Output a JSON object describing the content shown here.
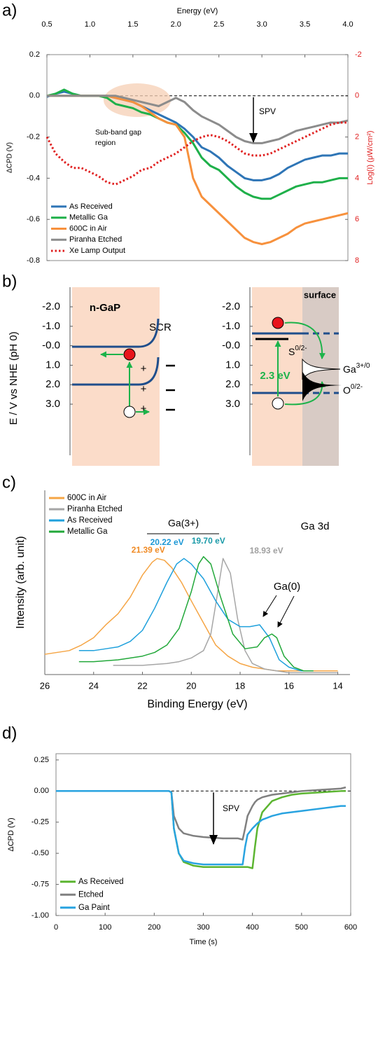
{
  "chart_data": [
    {
      "type": "line",
      "panel_label": "a)",
      "x_label": "Energy (eV)",
      "y_label": "ΔCPD (V)",
      "y2_label": "Log(I) (μW/cm²)",
      "y2_color": "#e02020",
      "xlim": [
        0.5,
        4.0
      ],
      "xticks": [
        0.5,
        {
          "value": 1,
          "label": "1.0"
        },
        1.5,
        {
          "value": 2,
          "label": "2.0"
        },
        2.5,
        {
          "value": 3,
          "label": "3.0"
        },
        3.5,
        {
          "value": 4,
          "label": "4.0"
        }
      ],
      "ylim": [
        -0.8,
        0.2
      ],
      "yticks": [
        0.2,
        {
          "value": 0,
          "label": "0.0"
        },
        -0.2,
        -0.4,
        -0.6,
        -0.8
      ],
      "y2lim": [
        8,
        -2
      ],
      "y2ticks": [
        -2,
        0,
        2,
        4,
        6,
        8
      ],
      "hline": {
        "y": 0
      },
      "legend": "lower left",
      "annotations": [
        "SPV",
        "Sub-band gap",
        "region"
      ],
      "x": [
        0.5,
        0.6,
        0.7,
        0.8,
        0.9,
        1.0,
        1.1,
        1.2,
        1.3,
        1.4,
        1.5,
        1.6,
        1.7,
        1.8,
        1.9,
        2.0,
        2.1,
        2.2,
        2.3,
        2.4,
        2.5,
        2.6,
        2.7,
        2.8,
        2.9,
        3.0,
        3.1,
        3.2,
        3.3,
        3.4,
        3.5,
        3.6,
        3.7,
        3.8,
        3.9,
        4.0
      ],
      "series": [
        {
          "name": "As Received",
          "color": "#2e75b6",
          "values": [
            -0.005,
            0.01,
            0.02,
            0.01,
            0,
            0,
            0,
            0,
            -0.01,
            -0.02,
            -0.03,
            -0.05,
            -0.07,
            -0.09,
            -0.11,
            -0.13,
            -0.16,
            -0.2,
            -0.25,
            -0.27,
            -0.3,
            -0.34,
            -0.37,
            -0.4,
            -0.41,
            -0.41,
            -0.4,
            -0.38,
            -0.35,
            -0.33,
            -0.31,
            -0.3,
            -0.29,
            -0.29,
            -0.28,
            -0.28
          ]
        },
        {
          "name": "Metallic Ga",
          "color": "#1fb04a",
          "values": [
            0,
            0.01,
            0.03,
            0.01,
            0,
            0,
            0,
            -0.01,
            -0.04,
            -0.05,
            -0.06,
            -0.08,
            -0.09,
            -0.11,
            -0.13,
            -0.14,
            -0.18,
            -0.23,
            -0.3,
            -0.34,
            -0.36,
            -0.4,
            -0.44,
            -0.47,
            -0.49,
            -0.5,
            -0.5,
            -0.48,
            -0.46,
            -0.44,
            -0.43,
            -0.42,
            -0.42,
            -0.41,
            -0.4,
            -0.4
          ]
        },
        {
          "name": "600C in Air",
          "color": "#f7913d",
          "values": [
            0,
            0,
            0,
            0,
            0,
            0,
            0,
            0,
            -0.01,
            -0.02,
            -0.03,
            -0.05,
            -0.08,
            -0.11,
            -0.13,
            -0.14,
            -0.2,
            -0.4,
            -0.49,
            -0.53,
            -0.57,
            -0.61,
            -0.65,
            -0.69,
            -0.71,
            -0.72,
            -0.71,
            -0.69,
            -0.67,
            -0.64,
            -0.62,
            -0.61,
            -0.6,
            -0.59,
            -0.58,
            -0.57
          ]
        },
        {
          "name": "Piranha Etched",
          "color": "#8c8c8c",
          "values": [
            0,
            0,
            0,
            0,
            0,
            0,
            0,
            0,
            0,
            -0.01,
            -0.02,
            -0.03,
            -0.04,
            -0.05,
            -0.03,
            -0.01,
            -0.03,
            -0.07,
            -0.1,
            -0.12,
            -0.14,
            -0.17,
            -0.2,
            -0.22,
            -0.23,
            -0.23,
            -0.22,
            -0.21,
            -0.19,
            -0.17,
            -0.16,
            -0.15,
            -0.14,
            -0.13,
            -0.13,
            -0.12
          ]
        },
        {
          "name": "Xe Lamp Output",
          "color": "#e02020",
          "style": "dotted",
          "axis": "y2",
          "values": [
            2,
            2.8,
            3.2,
            3.5,
            3.5,
            3.7,
            3.9,
            4.2,
            4.3,
            4.1,
            3.9,
            3.6,
            3.5,
            3.2,
            3.0,
            2.8,
            2.5,
            2.2,
            2.0,
            1.9,
            2.0,
            2.2,
            2.5,
            2.8,
            2.9,
            2.9,
            2.8,
            2.6,
            2.4,
            2.2,
            2.0,
            1.8,
            1.6,
            1.4,
            1.3,
            1.3
          ]
        }
      ]
    },
    {
      "type": "line",
      "panel_label": "c)",
      "x_label": "Binding Energy (eV)",
      "y_label": "Intensity (arb. unit)",
      "xlim": [
        26,
        13.5
      ],
      "xticks": [
        26,
        24,
        22,
        20,
        18,
        16,
        14
      ],
      "ylim": [
        0,
        1
      ],
      "legend": "upper left",
      "annotations": [
        "Ga(3+)",
        "Ga 3d",
        "Ga(0)"
      ],
      "peak_labels": [
        {
          "value": 21.39,
          "label": "21.39 eV",
          "color": "#f08a24"
        },
        {
          "value": 20.22,
          "label": "20.22 eV",
          "color": "#1b97d5"
        },
        {
          "value": 19.7,
          "label": "19.70 eV",
          "color": "#1a9aa8"
        },
        {
          "value": 18.93,
          "label": "18.93 eV",
          "color": "#a0a0a0"
        }
      ],
      "series": [
        {
          "name": "600C in Air",
          "color": "#f5a545",
          "x": [
            26,
            25.5,
            25,
            24.5,
            24,
            23.5,
            23,
            22.5,
            22,
            21.6,
            21.4,
            21.1,
            20.8,
            20.4,
            20,
            19.5,
            19,
            18.5,
            18,
            17.5,
            17,
            16.5,
            16,
            15.5,
            15,
            14.5,
            14
          ],
          "values": [
            0.11,
            0.12,
            0.13,
            0.16,
            0.2,
            0.27,
            0.33,
            0.42,
            0.54,
            0.61,
            0.63,
            0.62,
            0.58,
            0.5,
            0.4,
            0.28,
            0.16,
            0.1,
            0.06,
            0.04,
            0.03,
            0.02,
            0.02,
            0.02,
            0.02,
            0.02,
            0.02
          ]
        },
        {
          "name": "Piranha Etched",
          "color": "#a6a6a6",
          "x": [
            23.2,
            22,
            21,
            20.5,
            20,
            19.5,
            19.2,
            19,
            18.7,
            18.4,
            18.1,
            17.8,
            17.5,
            17,
            16.5,
            16,
            15,
            14
          ],
          "values": [
            0.05,
            0.05,
            0.06,
            0.07,
            0.09,
            0.13,
            0.22,
            0.38,
            0.63,
            0.55,
            0.3,
            0.13,
            0.06,
            0.03,
            0.02,
            0.01,
            0.01,
            0.01
          ]
        },
        {
          "name": "As Received",
          "color": "#1ea0dc",
          "x": [
            24.6,
            24,
            23.5,
            23,
            22.5,
            22,
            21.5,
            21,
            20.6,
            20.3,
            20,
            19.5,
            19,
            18.5,
            18,
            17.6,
            17.2,
            16.8,
            16.4,
            16,
            15.5,
            15
          ],
          "values": [
            0.13,
            0.13,
            0.14,
            0.15,
            0.18,
            0.24,
            0.36,
            0.5,
            0.6,
            0.63,
            0.6,
            0.52,
            0.4,
            0.3,
            0.26,
            0.26,
            0.27,
            0.2,
            0.08,
            0.04,
            0.02,
            0.02
          ]
        },
        {
          "name": "Metallic Ga",
          "color": "#22a83a",
          "x": [
            24.6,
            24,
            23,
            22,
            21.5,
            21,
            20.5,
            20,
            19.7,
            19.5,
            19.2,
            18.8,
            18.3,
            17.8,
            17.3,
            17,
            16.7,
            16.5,
            16.2,
            15.8,
            15.4,
            15
          ],
          "values": [
            0.07,
            0.07,
            0.08,
            0.1,
            0.12,
            0.16,
            0.25,
            0.45,
            0.6,
            0.64,
            0.6,
            0.42,
            0.22,
            0.14,
            0.15,
            0.2,
            0.22,
            0.2,
            0.1,
            0.04,
            0.02,
            0.02
          ]
        }
      ]
    },
    {
      "type": "line",
      "panel_label": "d)",
      "x_label": "Time (s)",
      "y_label": "ΔCPD (V)",
      "xlim": [
        0,
        600
      ],
      "xticks": [
        0,
        100,
        200,
        300,
        400,
        500,
        600
      ],
      "ylim": [
        -1,
        0.3
      ],
      "yticks": [
        0.25,
        {
          "value": 0,
          "label": "0.00"
        },
        -0.25,
        {
          "value": -0.5,
          "label": "-0.50"
        },
        -0.75,
        {
          "value": -1,
          "label": "-1.00"
        }
      ],
      "hline": {
        "y": 0,
        "xrange": [
          175,
          600
        ]
      },
      "legend": "lower left",
      "annotations": [
        "SPV"
      ],
      "x": [
        0,
        50,
        100,
        150,
        200,
        230,
        235,
        240,
        250,
        260,
        280,
        300,
        340,
        370,
        380,
        385,
        390,
        400,
        405,
        410,
        420,
        440,
        460,
        480,
        500,
        540,
        580,
        590
      ],
      "series": [
        {
          "name": "As Received",
          "color": "#5cb531",
          "values": [
            0,
            0,
            0,
            0,
            0,
            0,
            -0.01,
            -0.3,
            -0.5,
            -0.57,
            -0.6,
            -0.61,
            -0.61,
            -0.61,
            -0.61,
            -0.61,
            -0.61,
            -0.62,
            -0.45,
            -0.3,
            -0.17,
            -0.08,
            -0.05,
            -0.03,
            -0.02,
            -0.01,
            0,
            0
          ]
        },
        {
          "name": "Etched",
          "color": "#808080",
          "values": [
            0,
            0,
            0,
            0,
            0,
            0,
            -0.01,
            -0.2,
            -0.3,
            -0.34,
            -0.36,
            -0.37,
            -0.38,
            -0.38,
            -0.39,
            -0.3,
            -0.2,
            -0.12,
            -0.09,
            -0.07,
            -0.05,
            -0.03,
            -0.02,
            -0.01,
            0,
            0.01,
            0.02,
            0.03
          ]
        },
        {
          "name": "Ga Paint",
          "color": "#29a3e0",
          "values": [
            0,
            0,
            0,
            0,
            0,
            0,
            -0.01,
            -0.3,
            -0.5,
            -0.56,
            -0.58,
            -0.59,
            -0.59,
            -0.59,
            -0.59,
            -0.45,
            -0.35,
            -0.3,
            -0.28,
            -0.26,
            -0.23,
            -0.2,
            -0.18,
            -0.17,
            -0.16,
            -0.14,
            -0.12,
            -0.12
          ]
        }
      ]
    }
  ],
  "diagram": {
    "panel_label": "b)",
    "y_label": "E / V vs NHE (pH 0)",
    "yticks": [
      {
        "value": -2,
        "label": "-2.0"
      },
      {
        "value": -1,
        "label": "-1.0"
      },
      {
        "value": 0,
        "label": "-0.0"
      },
      {
        "value": 1,
        "label": "1.0"
      },
      {
        "value": 2,
        "label": "2.0"
      },
      {
        "value": 3,
        "label": "3.0"
      }
    ],
    "left": {
      "title": "n-GaP",
      "scr": "SCR",
      "charges": [
        "+",
        "+",
        "+"
      ]
    },
    "right": {
      "title": "surface",
      "gap": "2.3 eV",
      "states": [
        {
          "base": "S",
          "sup": "0/2-"
        },
        {
          "base": "Ga",
          "sup": "3+/0"
        },
        {
          "base": "O",
          "sup": "0/2-"
        }
      ]
    }
  }
}
